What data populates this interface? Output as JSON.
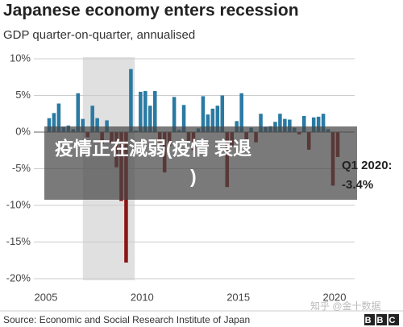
{
  "chart_data": {
    "type": "bar",
    "title": "Japanese economy enters recession",
    "subtitle": "GDP quarter-on-quarter, annualised",
    "categories": [
      "2005",
      null,
      null,
      null,
      null,
      null,
      null,
      null,
      null,
      null,
      null,
      null,
      null,
      null,
      null,
      null,
      null,
      null,
      null,
      null,
      "2010",
      null,
      null,
      null,
      null,
      null,
      null,
      null,
      null,
      null,
      null,
      null,
      null,
      null,
      null,
      null,
      null,
      null,
      null,
      null,
      "2015",
      null,
      null,
      null,
      null,
      null,
      null,
      null,
      null,
      null,
      null,
      null,
      null,
      null,
      null,
      null,
      null,
      null,
      null,
      null,
      "2020"
    ],
    "values": [
      1.9,
      2.6,
      3.9,
      0.7,
      0.9,
      0.4,
      5.3,
      1.8,
      -0.7,
      3.6,
      1.9,
      -1.6,
      1.6,
      -1.4,
      -4.8,
      -9.4,
      -17.8,
      8.6,
      0.2,
      5.5,
      5.6,
      3.6,
      5.6,
      -1.5,
      -5.5,
      -1.9,
      4.8,
      0.3,
      3.7,
      -1.2,
      -2.5,
      0.5,
      4.9,
      2.4,
      3.2,
      3.6,
      5.0,
      -7.5,
      -2.0,
      1.5,
      5.3,
      -1.0,
      0.6,
      -1.4,
      2.5,
      0.7,
      0.8,
      1.4,
      2.5,
      1.8,
      1.7,
      0.6,
      -0.3,
      2.2,
      -2.4,
      2.0,
      2.1,
      2.5,
      0.4,
      -7.3,
      -3.4
    ],
    "positive_color": "#2a7aa3",
    "negative_color": "#8a1515",
    "ylim": [
      -20,
      10
    ],
    "yticks": [
      {
        "value": 10,
        "label": "10%"
      },
      {
        "value": 5,
        "label": "5%"
      },
      {
        "value": 0,
        "label": "0%"
      },
      {
        "value": -5,
        "label": "-5%"
      },
      {
        "value": -10,
        "label": "-10%"
      },
      {
        "value": -15,
        "label": "-15%"
      },
      {
        "value": -20,
        "label": "-20%"
      }
    ],
    "grid": true,
    "annotation": [
      "Q1 2020:",
      "-3.4%"
    ],
    "overlay_text": [
      "疫情正在減弱(疫情 衰退",
      ")"
    ]
  },
  "source": "Source: Economic and Social Research Institute of Japan",
  "watermark": "知乎 @金十数据",
  "logo": "BBC"
}
